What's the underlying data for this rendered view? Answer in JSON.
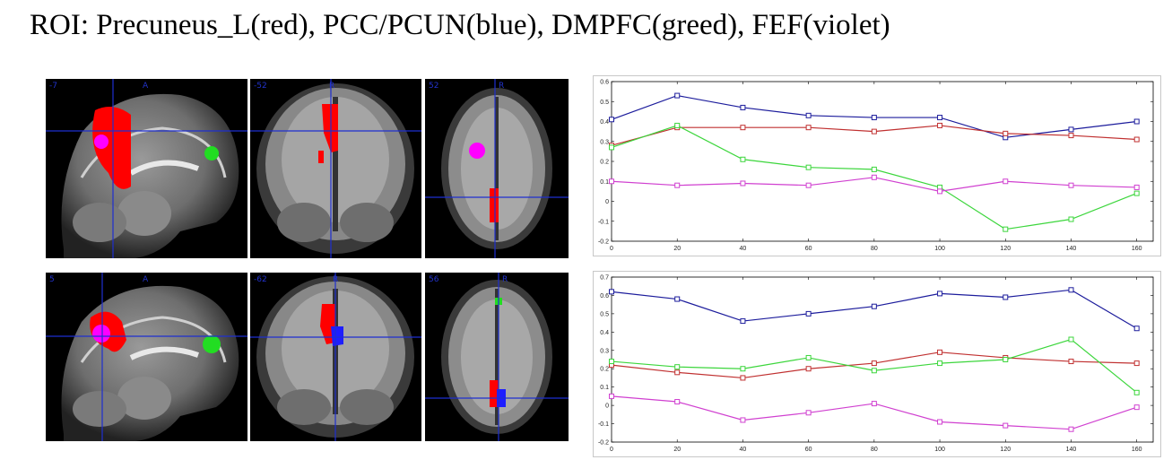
{
  "title": "ROI: Precuneus_L(red), PCC/PCUN(blue), DMPFC(greed), FEF(violet)",
  "rows": [
    {
      "slices": [
        {
          "view": "sagittal",
          "coord": "-7",
          "side": "A"
        },
        {
          "view": "coronal",
          "coord": "-52",
          "side": "R"
        },
        {
          "view": "axial",
          "coord": "52",
          "side": "R"
        }
      ]
    },
    {
      "slices": [
        {
          "view": "sagittal",
          "coord": "5",
          "side": "A"
        },
        {
          "view": "coronal",
          "coord": "-62",
          "side": "R"
        },
        {
          "view": "axial",
          "coord": "56",
          "side": "R"
        }
      ]
    }
  ],
  "chart_data": [
    {
      "type": "line",
      "x": [
        0,
        20,
        40,
        60,
        80,
        100,
        120,
        140,
        160
      ],
      "xlim": [
        0,
        165
      ],
      "ylim": [
        -0.2,
        0.6
      ],
      "xticks": [
        0,
        20,
        40,
        60,
        80,
        100,
        120,
        140,
        160
      ],
      "yticks": [
        -0.2,
        -0.1,
        0,
        0.1,
        0.2,
        0.3,
        0.4,
        0.5,
        0.6
      ],
      "ytick_labels": [
        "-0.2",
        "-0.1",
        "0",
        "0.1",
        "0.2",
        "0.3",
        "0.4",
        "0.5",
        "0.6"
      ],
      "series": [
        {
          "color": "#1c1c9c",
          "values": [
            0.41,
            0.53,
            0.47,
            0.43,
            0.42,
            0.42,
            0.32,
            0.36,
            0.4
          ]
        },
        {
          "color": "#c03030",
          "values": [
            0.28,
            0.37,
            0.37,
            0.37,
            0.35,
            0.38,
            0.34,
            0.33,
            0.31
          ]
        },
        {
          "color": "#3cd63c",
          "values": [
            0.27,
            0.38,
            0.21,
            0.17,
            0.16,
            0.07,
            -0.14,
            -0.09,
            0.04
          ]
        },
        {
          "color": "#d040d0",
          "values": [
            0.1,
            0.08,
            0.09,
            0.08,
            0.12,
            0.05,
            0.1,
            0.08,
            0.07
          ]
        }
      ]
    },
    {
      "type": "line",
      "x": [
        0,
        20,
        40,
        60,
        80,
        100,
        120,
        140,
        160
      ],
      "xlim": [
        0,
        165
      ],
      "ylim": [
        -0.2,
        0.7
      ],
      "xticks": [
        0,
        20,
        40,
        60,
        80,
        100,
        120,
        140,
        160
      ],
      "yticks": [
        -0.2,
        -0.1,
        0,
        0.1,
        0.2,
        0.3,
        0.4,
        0.5,
        0.6,
        0.7
      ],
      "ytick_labels": [
        "-0.2",
        "-0.1",
        "0",
        "0.1",
        "0.2",
        "0.3",
        "0.4",
        "0.5",
        "0.6",
        "0.7"
      ],
      "series": [
        {
          "color": "#1c1c9c",
          "values": [
            0.62,
            0.58,
            0.46,
            0.5,
            0.54,
            0.61,
            0.59,
            0.63,
            0.42
          ]
        },
        {
          "color": "#c03030",
          "values": [
            0.22,
            0.18,
            0.15,
            0.2,
            0.23,
            0.29,
            0.26,
            0.24,
            0.23
          ]
        },
        {
          "color": "#3cd63c",
          "values": [
            0.24,
            0.21,
            0.2,
            0.26,
            0.19,
            0.23,
            0.25,
            0.36,
            0.07
          ]
        },
        {
          "color": "#d040d0",
          "values": [
            0.05,
            0.02,
            -0.08,
            -0.04,
            0.01,
            -0.09,
            -0.11,
            -0.13,
            -0.01
          ]
        }
      ]
    }
  ]
}
